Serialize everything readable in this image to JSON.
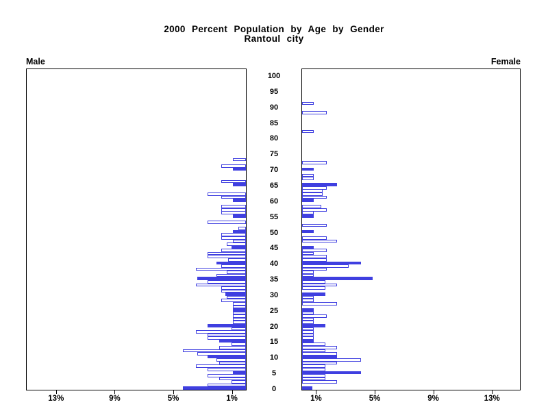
{
  "title": {
    "line1": "2000 Percent Population by Age by Gender",
    "line2": "Rantoul city"
  },
  "panels": {
    "male_label": "Male",
    "female_label": "Female"
  },
  "axis": {
    "male_tick_labels": [
      "13%",
      "9%",
      "5%",
      "1%"
    ],
    "male_tick_percents": [
      13,
      9,
      5,
      1
    ],
    "female_tick_labels": [
      "1%",
      "5%",
      "9%",
      "13%"
    ],
    "female_tick_percents": [
      1,
      5,
      9,
      13
    ],
    "age_tick_step": 5,
    "age_tick_labels": [
      "0",
      "5",
      "10",
      "15",
      "20",
      "25",
      "30",
      "35",
      "40",
      "45",
      "50",
      "55",
      "60",
      "65",
      "70",
      "75",
      "80",
      "85",
      "90",
      "95",
      "100"
    ]
  },
  "chart_data": {
    "type": "bar",
    "subtype": "population-pyramid",
    "title": "2000 Percent Population by Age by Gender",
    "subtitle": "Rantoul city",
    "orientation": "horizontal back-to-back, male axis reversed (0% at center)",
    "units": "percent of population",
    "x_range_percent": [
      0,
      15
    ],
    "age_range": [
      0,
      100
    ],
    "filled_rule": "bars for ages divisible by 5 are solid blue; other ages are white with blue outline",
    "colors": {
      "bar_blue": "#3f3fe0",
      "outline_fill": "#ffffff",
      "frame": "#000000",
      "background": "#ffffff"
    },
    "ages": [
      0,
      1,
      2,
      3,
      4,
      5,
      6,
      7,
      8,
      9,
      10,
      11,
      12,
      13,
      14,
      15,
      16,
      17,
      18,
      19,
      20,
      21,
      22,
      23,
      24,
      25,
      26,
      27,
      28,
      29,
      30,
      31,
      32,
      33,
      34,
      35,
      36,
      37,
      38,
      39,
      40,
      41,
      42,
      43,
      44,
      45,
      46,
      47,
      48,
      49,
      50,
      51,
      52,
      53,
      54,
      55,
      56,
      57,
      58,
      59,
      60,
      61,
      62,
      63,
      64,
      65,
      66,
      67,
      68,
      69,
      70,
      71,
      72,
      73,
      74,
      75,
      76,
      77,
      78,
      79,
      80,
      81,
      82,
      83,
      84,
      85,
      86,
      87,
      88,
      89,
      90,
      91,
      92,
      93,
      94,
      95,
      96,
      97,
      98,
      99,
      100
    ],
    "series": [
      {
        "name": "Male",
        "values": [
          4.3,
          2.6,
          1.0,
          1.8,
          2.6,
          0.9,
          2.6,
          3.4,
          1.8,
          2.0,
          2.6,
          3.3,
          4.3,
          1.8,
          1.0,
          1.8,
          2.6,
          2.6,
          3.4,
          1.0,
          2.6,
          0.9,
          0.9,
          0.9,
          0.9,
          0.9,
          0.9,
          0.9,
          1.7,
          1.3,
          1.4,
          1.7,
          1.7,
          3.4,
          2.6,
          3.3,
          2.0,
          1.3,
          3.4,
          1.7,
          2.0,
          1.2,
          2.6,
          2.6,
          1.7,
          1.0,
          1.3,
          0.9,
          1.7,
          1.7,
          0.9,
          0.5,
          0,
          2.6,
          0,
          0.9,
          1.7,
          1.7,
          1.7,
          0,
          0.9,
          1.7,
          2.6,
          0,
          0,
          0.9,
          1.7,
          0,
          0,
          0,
          0.9,
          1.7,
          0,
          0.9,
          0,
          0,
          0,
          0,
          0,
          0,
          0,
          0,
          0,
          0,
          0,
          0,
          0,
          0,
          0,
          0,
          0,
          0,
          0,
          0,
          0,
          0,
          0,
          0,
          0,
          0,
          0
        ]
      },
      {
        "name": "Female",
        "values": [
          0.7,
          0,
          2.4,
          1.6,
          1.6,
          4.0,
          1.6,
          1.6,
          2.4,
          4.0,
          2.4,
          2.4,
          1.6,
          2.4,
          1.6,
          0.8,
          0.8,
          0.8,
          0.8,
          0.8,
          1.6,
          0.8,
          0.8,
          1.7,
          0.8,
          0.8,
          0,
          2.4,
          0.8,
          0.8,
          1.6,
          0,
          1.6,
          2.4,
          1.6,
          4.8,
          0.8,
          0.8,
          1.7,
          3.2,
          4.0,
          1.7,
          1.7,
          0.8,
          1.7,
          0.8,
          0,
          2.4,
          1.7,
          0,
          0.8,
          0,
          1.7,
          0,
          0,
          0.8,
          0.8,
          1.7,
          1.3,
          0,
          0.8,
          1.7,
          1.4,
          1.4,
          1.7,
          2.4,
          0,
          0.8,
          0.8,
          0,
          0.8,
          0,
          1.7,
          0,
          0,
          0,
          0,
          0,
          0,
          0,
          0,
          0,
          0.8,
          0,
          0,
          0,
          0,
          0,
          1.7,
          0,
          0,
          0.8,
          0,
          0,
          0,
          0,
          0,
          0,
          0,
          0,
          0
        ]
      }
    ]
  }
}
